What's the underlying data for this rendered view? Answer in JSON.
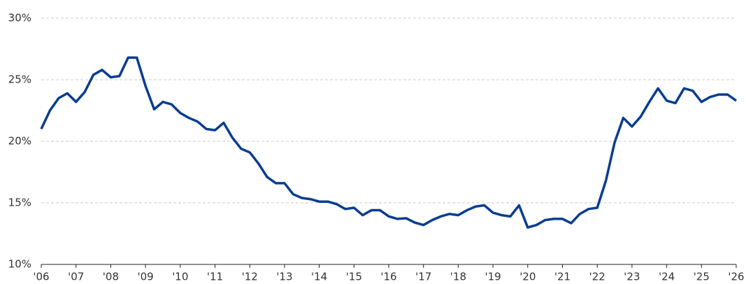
{
  "chart_data": {
    "type": "line",
    "x": [
      2006,
      2006.25,
      2006.5,
      2006.75,
      2007,
      2007.25,
      2007.5,
      2007.75,
      2008,
      2008.25,
      2008.5,
      2008.75,
      2009,
      2009.25,
      2009.5,
      2009.75,
      2010,
      2010.25,
      2010.5,
      2010.75,
      2011,
      2011.25,
      2011.5,
      2011.75,
      2012,
      2012.25,
      2012.5,
      2012.75,
      2013,
      2013.25,
      2013.5,
      2013.75,
      2014,
      2014.25,
      2014.5,
      2014.75,
      2015,
      2015.25,
      2015.5,
      2015.75,
      2016,
      2016.25,
      2016.5,
      2016.75,
      2017,
      2017.25,
      2017.5,
      2017.75,
      2018,
      2018.25,
      2018.5,
      2018.75,
      2019,
      2019.25,
      2019.5,
      2019.75,
      2020,
      2020.25,
      2020.5,
      2020.75,
      2021,
      2021.25,
      2021.5,
      2021.75,
      2022,
      2022.25,
      2022.5,
      2022.75,
      2023,
      2023.25,
      2023.5,
      2023.75,
      2024,
      2024.25,
      2024.5,
      2024.75,
      2025,
      2025.25,
      2025.5,
      2025.75,
      2026
    ],
    "series": [
      {
        "color": "#0a3d8f",
        "values": [
          21.0,
          22.5,
          23.5,
          23.9,
          23.2,
          24.0,
          25.4,
          25.8,
          25.2,
          25.3,
          26.8,
          26.8,
          24.5,
          22.6,
          23.2,
          23.0,
          22.3,
          21.9,
          21.6,
          21.0,
          20.9,
          21.5,
          20.3,
          19.4,
          19.1,
          18.2,
          17.1,
          16.6,
          16.6,
          15.7,
          15.4,
          15.3,
          15.1,
          15.1,
          14.9,
          14.5,
          14.6,
          14.0,
          14.4,
          14.4,
          13.9,
          13.7,
          13.75,
          13.4,
          13.2,
          13.6,
          13.9,
          14.1,
          14.0,
          14.4,
          14.7,
          14.8,
          14.2,
          14.0,
          13.9,
          14.8,
          13.0,
          13.2,
          13.6,
          13.7,
          13.7,
          13.35,
          14.1,
          14.5,
          14.6,
          16.8,
          19.9,
          21.9,
          21.2,
          22.0,
          23.2,
          24.3,
          23.3,
          23.1,
          24.3,
          24.1,
          23.2,
          23.6,
          23.8,
          23.8,
          23.3
        ]
      }
    ],
    "xlim": [
      2006,
      2026
    ],
    "xticks": [
      {
        "value": 2006,
        "label": "'06"
      },
      {
        "value": 2007,
        "label": "'07"
      },
      {
        "value": 2008,
        "label": "'08"
      },
      {
        "value": 2009,
        "label": "'09"
      },
      {
        "value": 2010,
        "label": "'10"
      },
      {
        "value": 2011,
        "label": "'11"
      },
      {
        "value": 2012,
        "label": "'12"
      },
      {
        "value": 2013,
        "label": "'13"
      },
      {
        "value": 2014,
        "label": "'14"
      },
      {
        "value": 2015,
        "label": "'15"
      },
      {
        "value": 2016,
        "label": "'16"
      },
      {
        "value": 2017,
        "label": "'17"
      },
      {
        "value": 2018,
        "label": "'18"
      },
      {
        "value": 2019,
        "label": "'19"
      },
      {
        "value": 2020,
        "label": "'20"
      },
      {
        "value": 2021,
        "label": "'21"
      },
      {
        "value": 2022,
        "label": "'22"
      },
      {
        "value": 2023,
        "label": "'23"
      },
      {
        "value": 2024,
        "label": "'24"
      },
      {
        "value": 2025,
        "label": "'25"
      },
      {
        "value": 2026,
        "label": "'26"
      }
    ],
    "ylim": [
      10,
      30
    ],
    "yticks": [
      {
        "value": 10,
        "label": "10%"
      },
      {
        "value": 15,
        "label": "15%"
      },
      {
        "value": 20,
        "label": "20%"
      },
      {
        "value": 25,
        "label": "25%"
      },
      {
        "value": 30,
        "label": "30%"
      }
    ],
    "grid": true
  }
}
